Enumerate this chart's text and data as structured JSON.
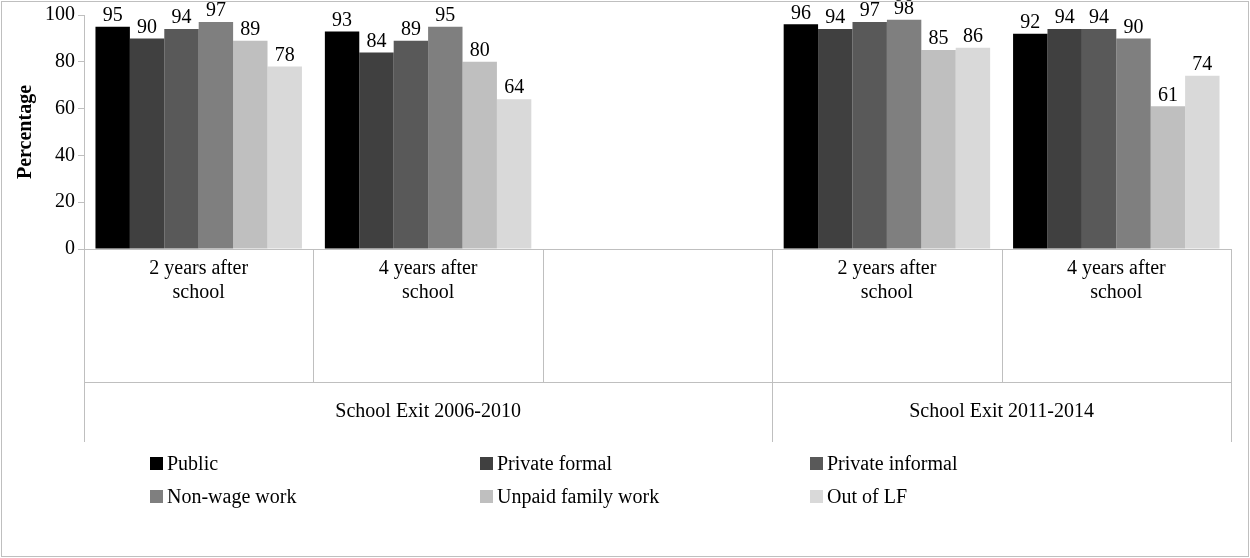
{
  "chart_data": {
    "type": "bar",
    "ylabel": "Percentage",
    "categories": [
      "2 years after school",
      "4 years after school",
      null,
      "2 years after school",
      "4 years after school"
    ],
    "series": [
      {
        "name": "Public",
        "color": "#000000",
        "values": [
          95,
          93,
          null,
          96,
          92
        ]
      },
      {
        "name": "Private formal",
        "color": "#404040",
        "values": [
          90,
          84,
          null,
          94,
          94
        ]
      },
      {
        "name": "Private informal",
        "color": "#595959",
        "values": [
          94,
          89,
          null,
          97,
          94
        ]
      },
      {
        "name": "Non-wage work",
        "color": "#7f7f7f",
        "values": [
          97,
          95,
          null,
          98,
          90
        ]
      },
      {
        "name": "Unpaid family work",
        "color": "#bfbfbf",
        "values": [
          89,
          80,
          null,
          85,
          61
        ]
      },
      {
        "name": "Out of LF",
        "color": "#d9d9d9",
        "values": [
          78,
          64,
          null,
          86,
          74
        ]
      }
    ],
    "annotations": [
      "School Exit 2006-2010",
      "School Exit 2011-2014"
    ],
    "ylim": [
      0,
      100
    ],
    "yticks": [
      0,
      20,
      40,
      60,
      80,
      100
    ],
    "grid": false,
    "legend": "bottom",
    "data_labels": true
  }
}
